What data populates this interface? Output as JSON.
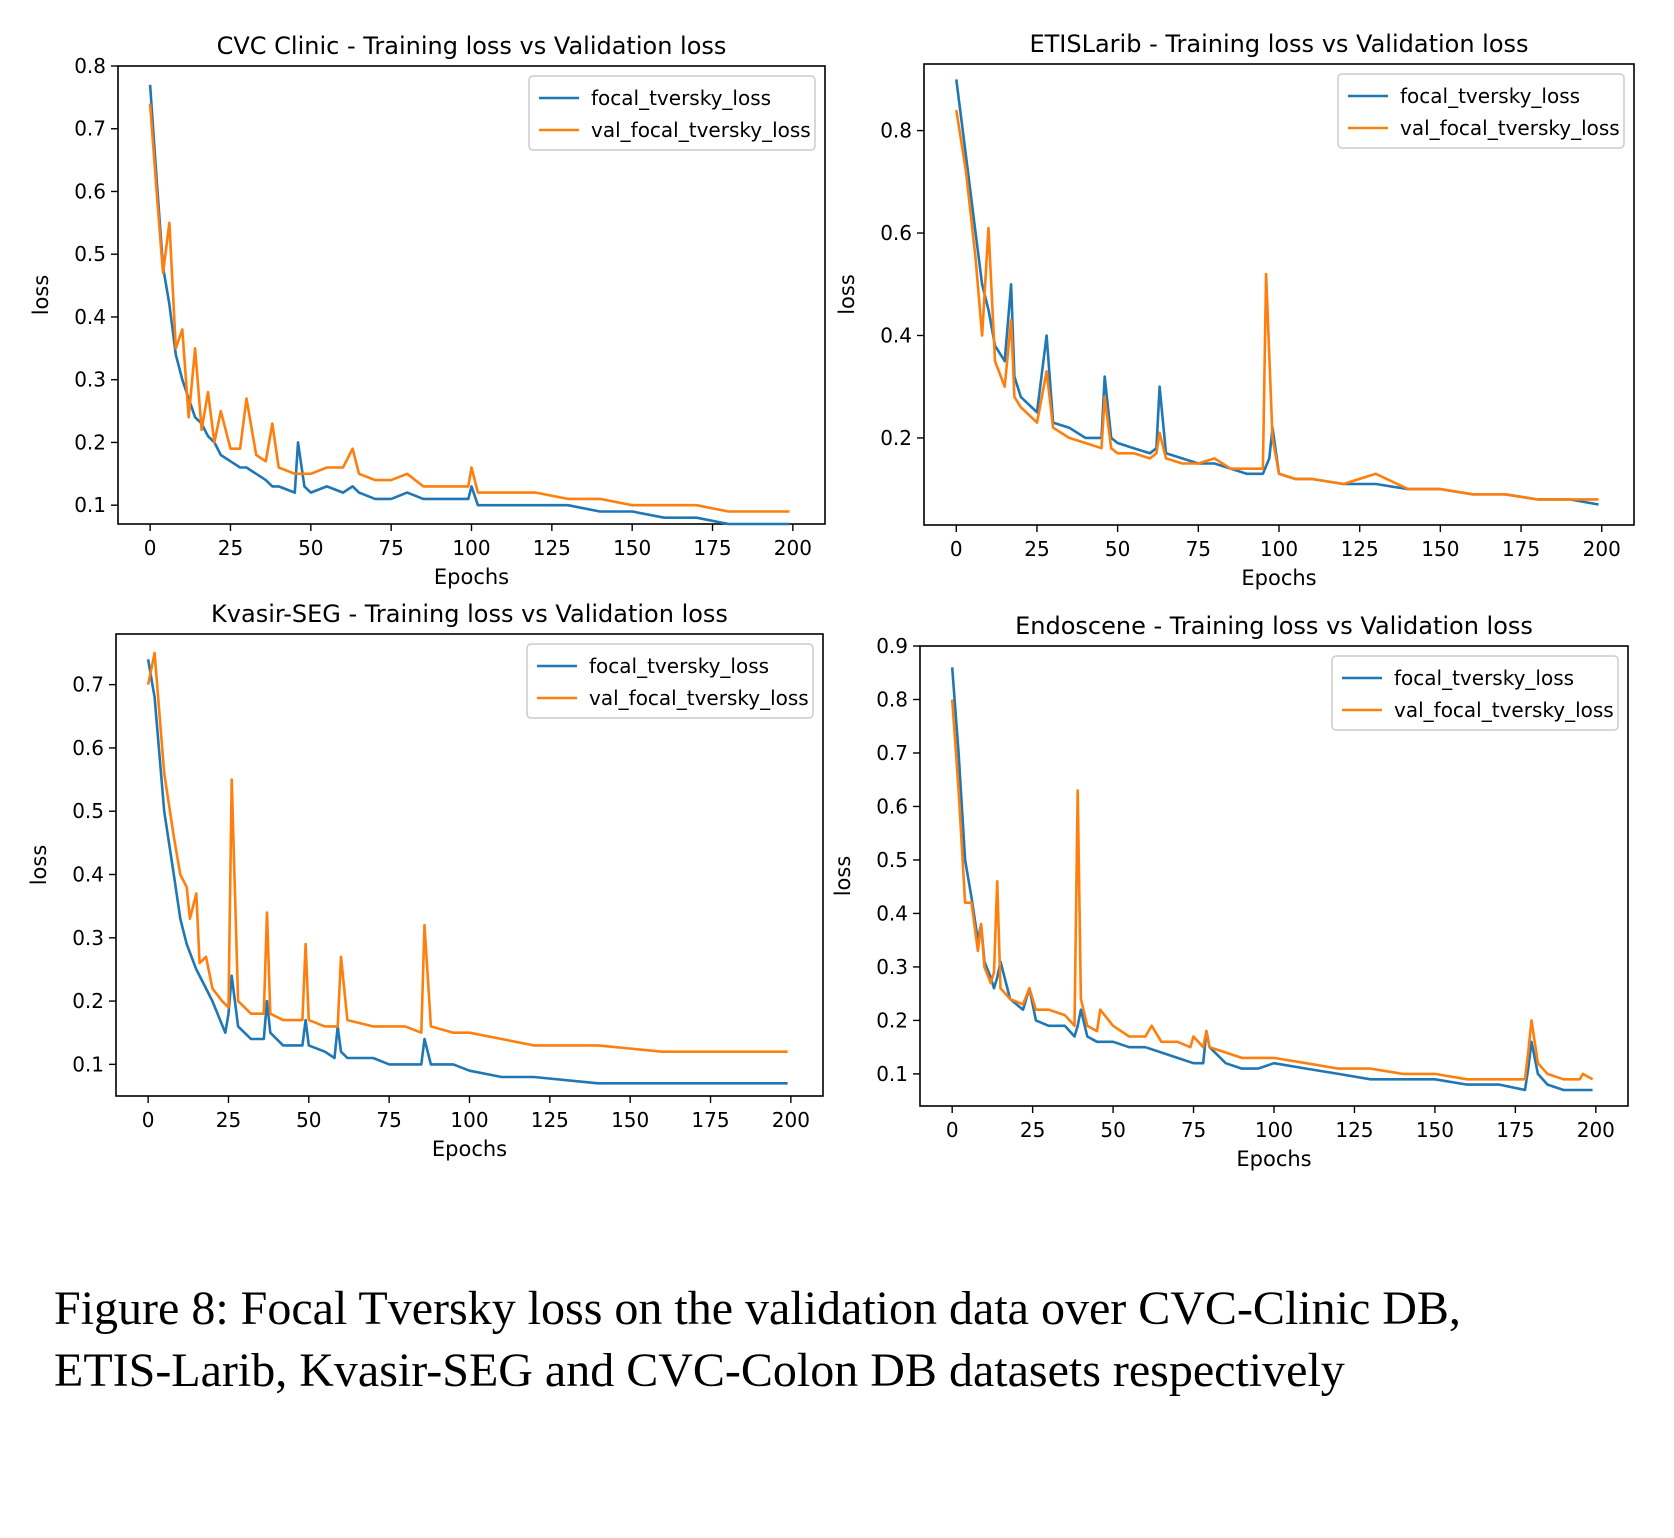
{
  "caption": {
    "line1": "Figure 8: Focal Tversky loss on the validation data over CVC-Clinic DB,",
    "line2": "ETIS-Larib, Kvasir-SEG and CVC-Colon DB datasets respectively"
  },
  "colors": {
    "train": "#1f77b4",
    "val": "#ff7f0e"
  },
  "chart_data": [
    {
      "type": "line",
      "title": "CVC Clinic - Training loss vs Validation loss",
      "xlabel": "Epochs",
      "ylabel": "loss",
      "xlim": [
        -10,
        210
      ],
      "ylim": [
        0.07,
        0.8
      ],
      "xticks": [
        0,
        25,
        50,
        75,
        100,
        125,
        150,
        175,
        200
      ],
      "yticks": [
        0.1,
        0.2,
        0.3,
        0.4,
        0.5,
        0.6,
        0.7,
        0.8
      ],
      "legend": "upper right",
      "series": [
        {
          "name": "focal_tversky_loss",
          "color": "#1f77b4",
          "x": [
            0,
            2,
            4,
            6,
            8,
            10,
            12,
            14,
            16,
            18,
            20,
            22,
            25,
            28,
            30,
            33,
            36,
            38,
            40,
            45,
            46,
            48,
            50,
            55,
            60,
            63,
            65,
            70,
            75,
            80,
            85,
            90,
            95,
            99,
            100,
            102,
            105,
            110,
            120,
            130,
            140,
            150,
            160,
            170,
            180,
            190,
            199
          ],
          "y": [
            0.77,
            0.62,
            0.48,
            0.42,
            0.34,
            0.3,
            0.27,
            0.24,
            0.23,
            0.21,
            0.2,
            0.18,
            0.17,
            0.16,
            0.16,
            0.15,
            0.14,
            0.13,
            0.13,
            0.12,
            0.2,
            0.13,
            0.12,
            0.13,
            0.12,
            0.13,
            0.12,
            0.11,
            0.11,
            0.12,
            0.11,
            0.11,
            0.11,
            0.11,
            0.13,
            0.1,
            0.1,
            0.1,
            0.1,
            0.1,
            0.09,
            0.09,
            0.08,
            0.08,
            0.07,
            0.07,
            0.07
          ]
        },
        {
          "name": "val_focal_tversky_loss",
          "color": "#ff7f0e",
          "x": [
            0,
            2,
            4,
            6,
            8,
            10,
            12,
            14,
            16,
            18,
            20,
            22,
            25,
            28,
            30,
            33,
            36,
            38,
            40,
            45,
            50,
            55,
            60,
            63,
            65,
            70,
            75,
            80,
            85,
            90,
            95,
            99,
            100,
            102,
            105,
            110,
            120,
            130,
            140,
            150,
            160,
            170,
            180,
            190,
            199
          ],
          "y": [
            0.74,
            0.6,
            0.47,
            0.55,
            0.35,
            0.38,
            0.24,
            0.35,
            0.22,
            0.28,
            0.2,
            0.25,
            0.19,
            0.19,
            0.27,
            0.18,
            0.17,
            0.23,
            0.16,
            0.15,
            0.15,
            0.16,
            0.16,
            0.19,
            0.15,
            0.14,
            0.14,
            0.15,
            0.13,
            0.13,
            0.13,
            0.13,
            0.16,
            0.12,
            0.12,
            0.12,
            0.12,
            0.11,
            0.11,
            0.1,
            0.1,
            0.1,
            0.09,
            0.09,
            0.09
          ]
        }
      ]
    },
    {
      "type": "line",
      "title": "ETISLarib - Training loss vs Validation loss",
      "xlabel": "Epochs",
      "ylabel": "loss",
      "xlim": [
        -10,
        210
      ],
      "ylim": [
        0.03,
        0.93
      ],
      "xticks": [
        0,
        25,
        50,
        75,
        100,
        125,
        150,
        175,
        200
      ],
      "yticks": [
        0.2,
        0.4,
        0.6,
        0.8
      ],
      "legend": "upper right",
      "series": [
        {
          "name": "focal_tversky_loss",
          "color": "#1f77b4",
          "x": [
            0,
            3,
            6,
            8,
            10,
            12,
            15,
            17,
            18,
            20,
            25,
            28,
            30,
            35,
            40,
            45,
            46,
            48,
            50,
            55,
            60,
            62,
            63,
            65,
            70,
            75,
            80,
            85,
            90,
            95,
            97,
            98,
            100,
            105,
            110,
            120,
            130,
            140,
            150,
            160,
            170,
            180,
            190,
            199
          ],
          "y": [
            0.9,
            0.75,
            0.6,
            0.5,
            0.45,
            0.38,
            0.35,
            0.5,
            0.32,
            0.28,
            0.25,
            0.4,
            0.23,
            0.22,
            0.2,
            0.2,
            0.32,
            0.2,
            0.19,
            0.18,
            0.17,
            0.18,
            0.3,
            0.17,
            0.16,
            0.15,
            0.15,
            0.14,
            0.13,
            0.13,
            0.16,
            0.22,
            0.13,
            0.12,
            0.12,
            0.11,
            0.11,
            0.1,
            0.1,
            0.09,
            0.09,
            0.08,
            0.08,
            0.07
          ]
        },
        {
          "name": "val_focal_tversky_loss",
          "color": "#ff7f0e",
          "x": [
            0,
            3,
            6,
            8,
            10,
            12,
            15,
            17,
            18,
            20,
            25,
            28,
            30,
            35,
            40,
            45,
            46,
            48,
            50,
            55,
            60,
            62,
            63,
            65,
            70,
            75,
            80,
            85,
            90,
            95,
            96,
            98,
            100,
            105,
            110,
            120,
            130,
            140,
            150,
            160,
            170,
            180,
            190,
            199
          ],
          "y": [
            0.84,
            0.72,
            0.55,
            0.4,
            0.61,
            0.35,
            0.3,
            0.43,
            0.28,
            0.26,
            0.23,
            0.33,
            0.22,
            0.2,
            0.19,
            0.18,
            0.28,
            0.18,
            0.17,
            0.17,
            0.16,
            0.17,
            0.21,
            0.16,
            0.15,
            0.15,
            0.16,
            0.14,
            0.14,
            0.14,
            0.52,
            0.2,
            0.13,
            0.12,
            0.12,
            0.11,
            0.13,
            0.1,
            0.1,
            0.09,
            0.09,
            0.08,
            0.08,
            0.08
          ]
        }
      ]
    },
    {
      "type": "line",
      "title": "Kvasir-SEG - Training loss vs Validation loss",
      "xlabel": "Epochs",
      "ylabel": "loss",
      "xlim": [
        -10,
        210
      ],
      "ylim": [
        0.05,
        0.78
      ],
      "xticks": [
        0,
        25,
        50,
        75,
        100,
        125,
        150,
        175,
        200
      ],
      "yticks": [
        0.1,
        0.2,
        0.3,
        0.4,
        0.5,
        0.6,
        0.7
      ],
      "legend": "upper right",
      "series": [
        {
          "name": "focal_tversky_loss",
          "color": "#1f77b4",
          "x": [
            0,
            2,
            5,
            8,
            10,
            12,
            15,
            18,
            20,
            24,
            25,
            26,
            28,
            32,
            36,
            37,
            38,
            42,
            45,
            48,
            49,
            50,
            55,
            58,
            59,
            60,
            62,
            65,
            70,
            75,
            80,
            85,
            86,
            88,
            95,
            100,
            110,
            120,
            140,
            160,
            180,
            199
          ],
          "y": [
            0.74,
            0.68,
            0.5,
            0.4,
            0.33,
            0.29,
            0.25,
            0.22,
            0.2,
            0.15,
            0.18,
            0.24,
            0.16,
            0.14,
            0.14,
            0.2,
            0.15,
            0.13,
            0.13,
            0.13,
            0.17,
            0.13,
            0.12,
            0.11,
            0.16,
            0.12,
            0.11,
            0.11,
            0.11,
            0.1,
            0.1,
            0.1,
            0.14,
            0.1,
            0.1,
            0.09,
            0.08,
            0.08,
            0.07,
            0.07,
            0.07,
            0.07
          ]
        },
        {
          "name": "val_focal_tversky_loss",
          "color": "#ff7f0e",
          "x": [
            0,
            2,
            5,
            8,
            10,
            12,
            13,
            15,
            16,
            18,
            20,
            23,
            25,
            26,
            28,
            32,
            36,
            37,
            38,
            42,
            48,
            49,
            50,
            55,
            59,
            60,
            62,
            70,
            80,
            85,
            86,
            88,
            95,
            100,
            110,
            120,
            140,
            160,
            180,
            199
          ],
          "y": [
            0.7,
            0.75,
            0.56,
            0.46,
            0.4,
            0.38,
            0.33,
            0.37,
            0.26,
            0.27,
            0.22,
            0.2,
            0.19,
            0.55,
            0.2,
            0.18,
            0.18,
            0.34,
            0.18,
            0.17,
            0.17,
            0.29,
            0.17,
            0.16,
            0.16,
            0.27,
            0.17,
            0.16,
            0.16,
            0.15,
            0.32,
            0.16,
            0.15,
            0.15,
            0.14,
            0.13,
            0.13,
            0.12,
            0.12,
            0.12
          ]
        }
      ]
    },
    {
      "type": "line",
      "title": "Endoscene - Training loss vs Validation loss",
      "xlabel": "Epochs",
      "ylabel": "loss",
      "xlim": [
        -10,
        210
      ],
      "ylim": [
        0.04,
        0.9
      ],
      "xticks": [
        0,
        25,
        50,
        75,
        100,
        125,
        150,
        175,
        200
      ],
      "yticks": [
        0.1,
        0.2,
        0.3,
        0.4,
        0.5,
        0.6,
        0.7,
        0.8,
        0.9
      ],
      "legend": "upper right",
      "series": [
        {
          "name": "focal_tversky_loss",
          "color": "#1f77b4",
          "x": [
            0,
            2,
            4,
            6,
            8,
            9,
            10,
            12,
            13,
            14,
            15,
            18,
            22,
            24,
            26,
            30,
            35,
            38,
            39,
            40,
            42,
            45,
            50,
            55,
            60,
            65,
            70,
            75,
            78,
            79,
            80,
            85,
            90,
            95,
            100,
            110,
            120,
            130,
            140,
            150,
            160,
            170,
            178,
            179,
            180,
            182,
            185,
            190,
            199
          ],
          "y": [
            0.86,
            0.7,
            0.5,
            0.43,
            0.35,
            0.38,
            0.31,
            0.28,
            0.26,
            0.28,
            0.31,
            0.24,
            0.22,
            0.26,
            0.2,
            0.19,
            0.19,
            0.17,
            0.19,
            0.22,
            0.17,
            0.16,
            0.16,
            0.15,
            0.15,
            0.14,
            0.13,
            0.12,
            0.12,
            0.18,
            0.15,
            0.12,
            0.11,
            0.11,
            0.12,
            0.11,
            0.1,
            0.09,
            0.09,
            0.09,
            0.08,
            0.08,
            0.07,
            0.11,
            0.16,
            0.1,
            0.08,
            0.07,
            0.07
          ]
        },
        {
          "name": "val_focal_tversky_loss",
          "color": "#ff7f0e",
          "x": [
            0,
            2,
            4,
            6,
            8,
            9,
            10,
            12,
            13,
            14,
            15,
            18,
            22,
            24,
            26,
            30,
            35,
            38,
            39,
            40,
            42,
            45,
            46,
            50,
            55,
            60,
            62,
            65,
            70,
            74,
            75,
            78,
            79,
            80,
            85,
            90,
            95,
            100,
            110,
            120,
            130,
            140,
            150,
            160,
            170,
            178,
            179,
            180,
            182,
            185,
            190,
            195,
            196,
            199
          ],
          "y": [
            0.8,
            0.63,
            0.42,
            0.42,
            0.33,
            0.38,
            0.3,
            0.27,
            0.29,
            0.46,
            0.26,
            0.24,
            0.23,
            0.26,
            0.22,
            0.22,
            0.21,
            0.19,
            0.63,
            0.24,
            0.19,
            0.18,
            0.22,
            0.19,
            0.17,
            0.17,
            0.19,
            0.16,
            0.16,
            0.15,
            0.17,
            0.15,
            0.18,
            0.15,
            0.14,
            0.13,
            0.13,
            0.13,
            0.12,
            0.11,
            0.11,
            0.1,
            0.1,
            0.09,
            0.09,
            0.09,
            0.14,
            0.2,
            0.12,
            0.1,
            0.09,
            0.09,
            0.1,
            0.09
          ]
        }
      ]
    }
  ]
}
